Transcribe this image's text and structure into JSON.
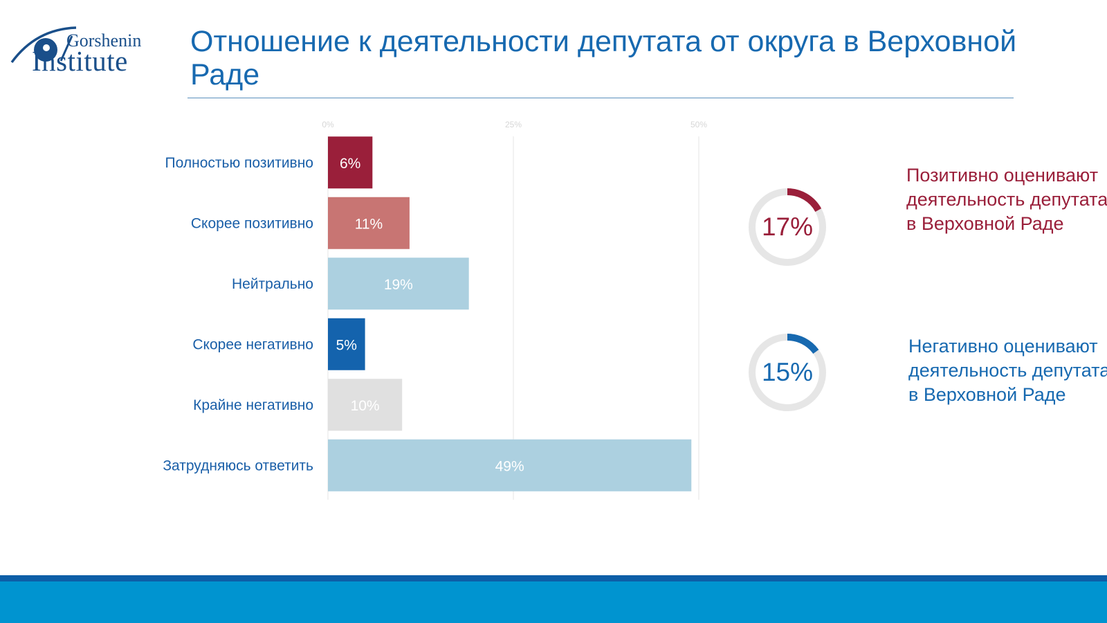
{
  "logo": {
    "line1": "Gorshenin",
    "line2": "Institute"
  },
  "title": "Отношение к деятельности депутата от округа в Верховной Раде",
  "chart_data": [
    {
      "type": "bar",
      "orientation": "horizontal",
      "categories": [
        "Полностью позитивно",
        "Скорее позитивно",
        "Нейтрально",
        "Скорее негативно",
        "Крайне негативно",
        "Затрудняюсь ответить"
      ],
      "values": [
        6,
        11,
        19,
        5,
        10,
        49
      ],
      "value_labels": [
        "6%",
        "11%",
        "19%",
        "5%",
        "10%",
        "49%"
      ],
      "colors": [
        "#9a1f3a",
        "#c87573",
        "#acd0e0",
        "#1463ad",
        "#e0e0e0",
        "#acd0e0"
      ],
      "x_ticks": [
        0,
        25,
        50
      ],
      "x_tick_labels": [
        "0%",
        "25%",
        "50%"
      ],
      "xlim": [
        0,
        50
      ],
      "grid": true,
      "title": "",
      "xlabel": "",
      "ylabel": ""
    },
    {
      "type": "pie",
      "variant": "donut",
      "value": 17,
      "label": "17%",
      "color": "#9a1f3a",
      "track_color": "#e6e6e6"
    },
    {
      "type": "pie",
      "variant": "donut",
      "value": 15,
      "label": "15%",
      "color": "#1769b0",
      "track_color": "#e6e6e6"
    }
  ],
  "summaries": {
    "positive": "Позитивно оценивают деятельность депутата в Верховной Раде",
    "negative": "Негативно оценивают деятельность депутата в Верховной Раде"
  },
  "colors": {
    "title": "#1769b0",
    "category_label": "#1a5fa8",
    "positive": "#9a1f3a",
    "negative": "#1769b0",
    "footer_dark": "#0d5ea7",
    "footer": "#0094d0"
  }
}
